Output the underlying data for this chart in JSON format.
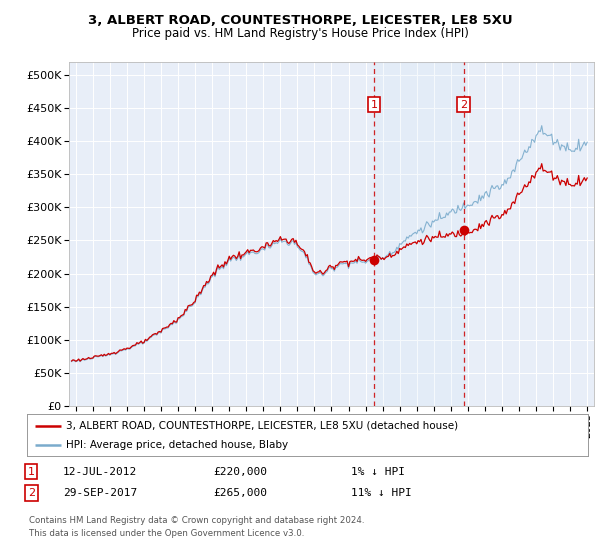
{
  "title_line1": "3, ALBERT ROAD, COUNTESTHORPE, LEICESTER, LE8 5XU",
  "title_line2": "Price paid vs. HM Land Registry's House Price Index (HPI)",
  "legend_label1": "3, ALBERT ROAD, COUNTESTHORPE, LEICESTER, LE8 5XU (detached house)",
  "legend_label2": "HPI: Average price, detached house, Blaby",
  "annotation1_label": "1",
  "annotation1_date": "12-JUL-2012",
  "annotation1_price": "£220,000",
  "annotation1_hpi": "1% ↓ HPI",
  "annotation1_year": 2012.5,
  "annotation1_value": 220000,
  "annotation2_label": "2",
  "annotation2_date": "29-SEP-2017",
  "annotation2_price": "£265,000",
  "annotation2_hpi": "11% ↓ HPI",
  "annotation2_year": 2017.75,
  "annotation2_value": 265000,
  "ylim": [
    0,
    520000
  ],
  "xlim_start": 1994.6,
  "xlim_end": 2025.4,
  "background_color": "#ffffff",
  "plot_bg_color": "#e8eef8",
  "grid_color": "#ffffff",
  "line1_color": "#cc0000",
  "line2_color": "#7aabcc",
  "annotation_color": "#cc0000",
  "footnote1": "Contains HM Land Registry data © Crown copyright and database right 2024.",
  "footnote2": "This data is licensed under the Open Government Licence v3.0."
}
